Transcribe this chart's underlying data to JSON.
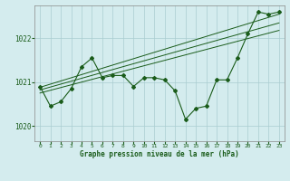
{
  "title": "Graphe pression niveau de la mer (hPa)",
  "background_color": "#d4ecee",
  "grid_color": "#aacdd0",
  "line_color": "#1a5c1a",
  "xlim": [
    -0.5,
    23.5
  ],
  "ylim": [
    1019.65,
    1022.75
  ],
  "xticks": [
    0,
    1,
    2,
    3,
    4,
    5,
    6,
    7,
    8,
    9,
    10,
    11,
    12,
    13,
    14,
    15,
    16,
    17,
    18,
    19,
    20,
    21,
    22,
    23
  ],
  "yticks": [
    1020,
    1021,
    1022
  ],
  "series1": [
    1020.9,
    1020.45,
    1020.55,
    1020.85,
    1021.35,
    1021.55,
    1021.1,
    1021.15,
    1021.15,
    1020.9,
    1021.1,
    1021.1,
    1021.05,
    1020.8,
    1020.15,
    1020.4,
    1020.45,
    1021.05,
    1021.05,
    1021.55,
    1022.1,
    1022.6,
    1022.55,
    1022.6
  ],
  "trend1_x": [
    0,
    23
  ],
  "trend1_y": [
    1020.88,
    1022.55
  ],
  "trend2_x": [
    0,
    23
  ],
  "trend2_y": [
    1020.82,
    1022.35
  ],
  "trend3_x": [
    0,
    23
  ],
  "trend3_y": [
    1020.75,
    1022.18
  ]
}
